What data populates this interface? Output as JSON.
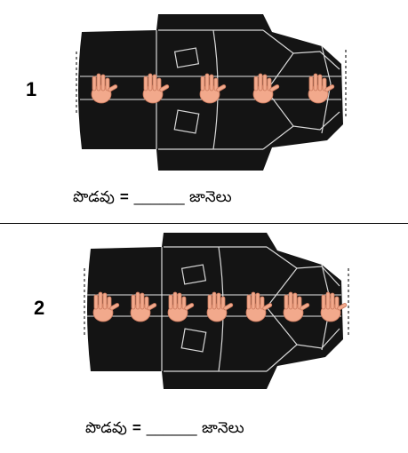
{
  "panels": [
    {
      "number": "1",
      "caption": {
        "label": "పొడవు",
        "equals": "=",
        "blank": "______",
        "unit": "జానెలు"
      },
      "hand_spans": 5
    },
    {
      "number": "2",
      "caption": {
        "label": "పొడవు",
        "equals": "=",
        "blank": "______",
        "unit": "జానెలు"
      },
      "hand_spans": 7
    }
  ],
  "colors": {
    "coat": "#141414",
    "coat_lines": "#d8d8d8",
    "hand": "#f2a98c",
    "hand_outline": "#c9785c"
  }
}
